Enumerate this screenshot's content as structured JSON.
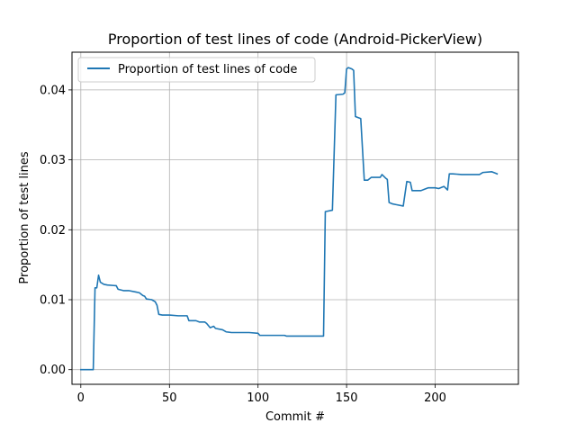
{
  "chart_data": {
    "type": "line",
    "title": "Proportion of test lines of code (Android-PickerView)",
    "xlabel": "Commit #",
    "ylabel": "Proportion of test lines",
    "xlim": [
      -5,
      247
    ],
    "ylim": [
      -0.0021,
      0.0454
    ],
    "x_ticks": [
      0,
      50,
      100,
      150,
      200
    ],
    "y_ticks": [
      0.0,
      0.01,
      0.02,
      0.03,
      0.04
    ],
    "x_tick_labels": [
      "0",
      "50",
      "100",
      "150",
      "200"
    ],
    "y_tick_labels": [
      "0.00",
      "0.01",
      "0.02",
      "0.03",
      "0.04"
    ],
    "grid": true,
    "legend_placement": "upper-left",
    "series": [
      {
        "name": "Proportion of test lines of code",
        "color": "#1f77b4",
        "points": [
          [
            0,
            0.0
          ],
          [
            7,
            0.0
          ],
          [
            8,
            0.0117
          ],
          [
            9,
            0.0117
          ],
          [
            10,
            0.0135
          ],
          [
            11,
            0.0125
          ],
          [
            13,
            0.0122
          ],
          [
            15,
            0.0121
          ],
          [
            20,
            0.012
          ],
          [
            21,
            0.0115
          ],
          [
            24,
            0.0113
          ],
          [
            27,
            0.0113
          ],
          [
            31,
            0.0111
          ],
          [
            33,
            0.011
          ],
          [
            35,
            0.0106
          ],
          [
            36,
            0.0105
          ],
          [
            37,
            0.0101
          ],
          [
            40,
            0.01
          ],
          [
            42,
            0.0097
          ],
          [
            43,
            0.0092
          ],
          [
            44,
            0.0079
          ],
          [
            46,
            0.0078
          ],
          [
            50,
            0.0078
          ],
          [
            55,
            0.0077
          ],
          [
            60,
            0.0077
          ],
          [
            61,
            0.007
          ],
          [
            65,
            0.007
          ],
          [
            67,
            0.0068
          ],
          [
            70,
            0.0068
          ],
          [
            71,
            0.0066
          ],
          [
            73,
            0.006
          ],
          [
            75,
            0.0062
          ],
          [
            76,
            0.0059
          ],
          [
            80,
            0.0057
          ],
          [
            82,
            0.0054
          ],
          [
            85,
            0.0053
          ],
          [
            95,
            0.0053
          ],
          [
            100,
            0.0052
          ],
          [
            101,
            0.0049
          ],
          [
            110,
            0.0049
          ],
          [
            115,
            0.0049
          ],
          [
            116,
            0.0048
          ],
          [
            130,
            0.0048
          ],
          [
            137,
            0.0048
          ],
          [
            138,
            0.0226
          ],
          [
            142,
            0.0228
          ],
          [
            144,
            0.0393
          ],
          [
            148,
            0.0394
          ],
          [
            149,
            0.0396
          ],
          [
            150,
            0.043
          ],
          [
            151,
            0.0432
          ],
          [
            153,
            0.043
          ],
          [
            154,
            0.0428
          ],
          [
            155,
            0.0362
          ],
          [
            158,
            0.0359
          ],
          [
            160,
            0.0271
          ],
          [
            162,
            0.0271
          ],
          [
            164,
            0.0275
          ],
          [
            169,
            0.0275
          ],
          [
            170,
            0.0279
          ],
          [
            172,
            0.0274
          ],
          [
            173,
            0.0272
          ],
          [
            174,
            0.0239
          ],
          [
            176,
            0.0237
          ],
          [
            178,
            0.0236
          ],
          [
            182,
            0.0234
          ],
          [
            184,
            0.0269
          ],
          [
            186,
            0.0268
          ],
          [
            187,
            0.0256
          ],
          [
            192,
            0.0256
          ],
          [
            194,
            0.0258
          ],
          [
            196,
            0.026
          ],
          [
            200,
            0.026
          ],
          [
            202,
            0.0259
          ],
          [
            205,
            0.0262
          ],
          [
            207,
            0.0257
          ],
          [
            208,
            0.028
          ],
          [
            210,
            0.028
          ],
          [
            215,
            0.0279
          ],
          [
            225,
            0.0279
          ],
          [
            227,
            0.0282
          ],
          [
            232,
            0.0283
          ],
          [
            234,
            0.0281
          ],
          [
            235,
            0.028
          ]
        ]
      }
    ]
  }
}
